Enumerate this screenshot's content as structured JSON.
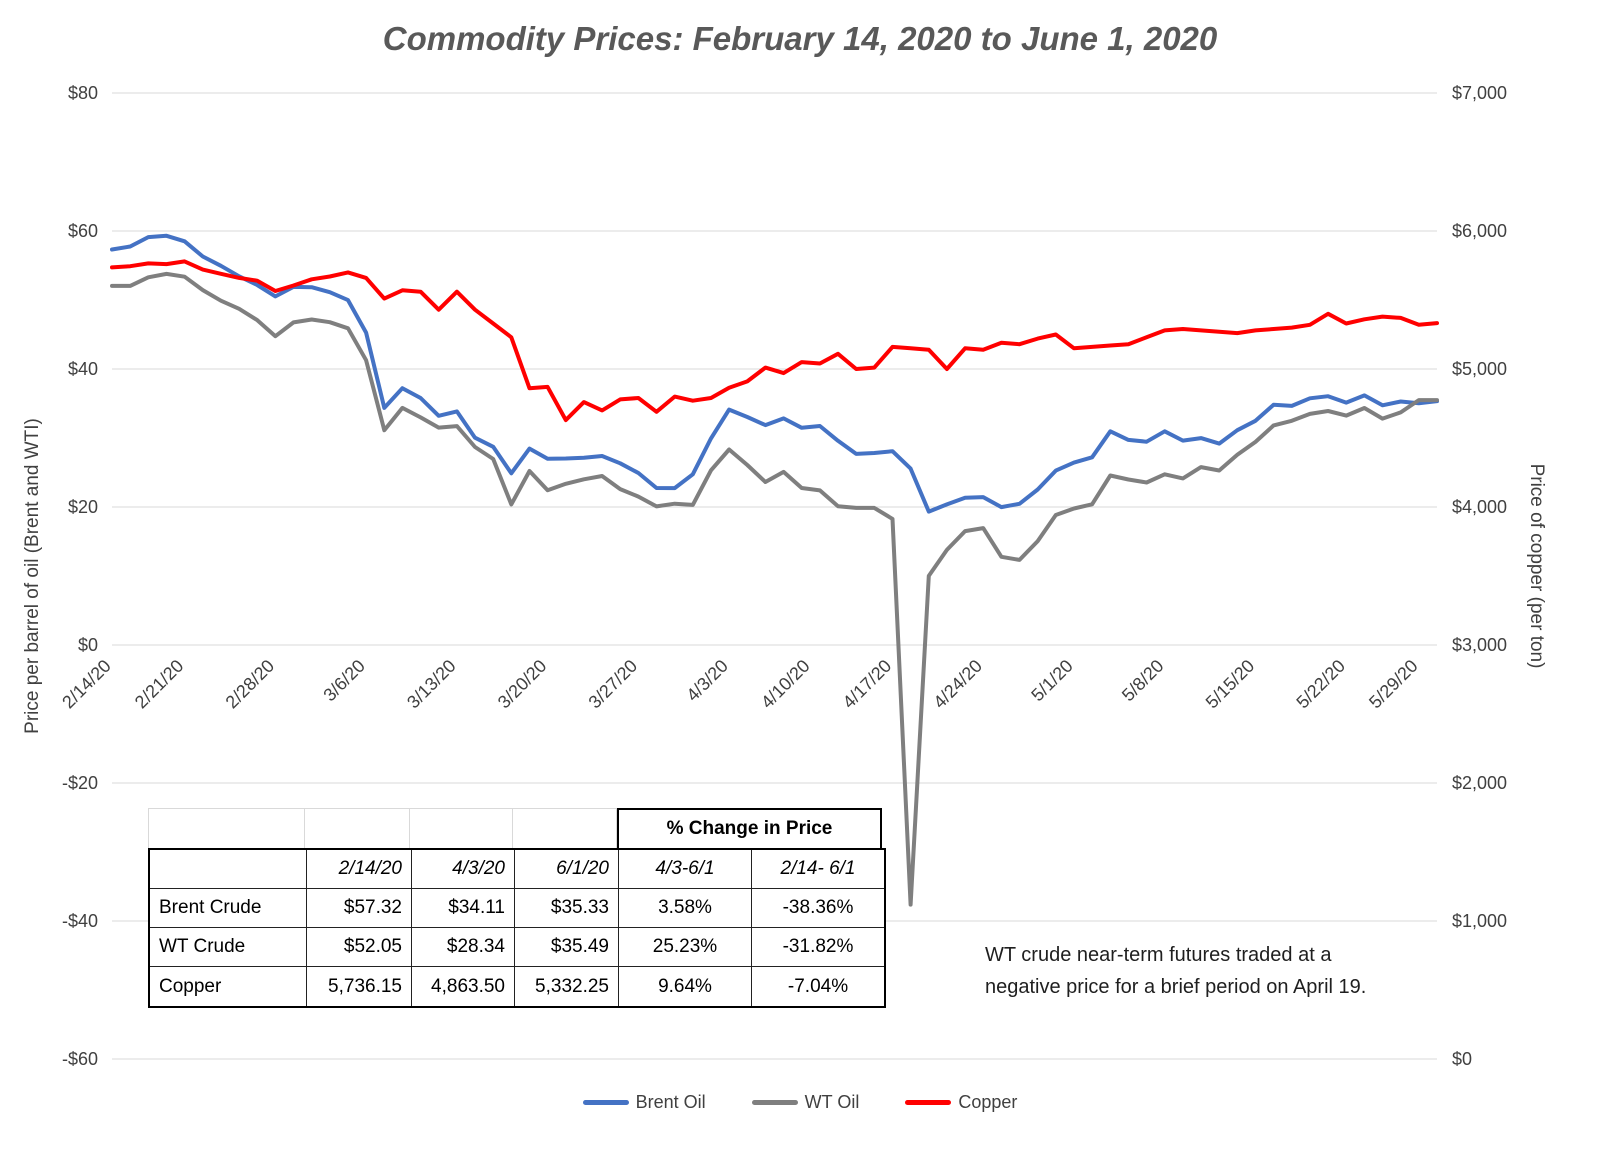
{
  "chart_data": {
    "type": "line",
    "title": "Commodity Prices: February 14, 2020 to June 1, 2020",
    "x_tick_labels": [
      "2/14/20",
      "2/21/20",
      "2/28/20",
      "3/6/20",
      "3/13/20",
      "3/20/20",
      "3/27/20",
      "4/3/20",
      "4/10/20",
      "4/17/20",
      "4/24/20",
      "5/1/20",
      "5/8/20",
      "5/15/20",
      "5/22/20",
      "5/29/20"
    ],
    "x_tick_indices": [
      0,
      4,
      9,
      14,
      19,
      24,
      29,
      34,
      38.5,
      43,
      48,
      53,
      58,
      63,
      68,
      72
    ],
    "left_axis": {
      "label": "Price per barrel of oil (Brent and WTI)",
      "min": -60,
      "max": 80,
      "tick_values": [
        80,
        60,
        40,
        20,
        0,
        -20,
        -40,
        -60
      ],
      "tick_labels": [
        "$80",
        "$60",
        "$40",
        "$20",
        "$0",
        "-$20",
        "-$40",
        "-$60"
      ]
    },
    "right_axis": {
      "label": "Price of copper (per ton)",
      "min": 0,
      "max": 7000,
      "tick_values": [
        7000,
        6000,
        5000,
        4000,
        3000,
        2000,
        1000,
        0
      ],
      "tick_labels": [
        "$7,000",
        "$6,000",
        "$5,000",
        "$4,000",
        "$3,000",
        "$2,000",
        "$1,000",
        "$0"
      ]
    },
    "grid": true,
    "legend_position": "bottom",
    "series": [
      {
        "name": "Brent Oil",
        "color": "#4472C4",
        "axis": "left",
        "values": [
          57.32,
          57.75,
          59.12,
          59.31,
          58.5,
          56.3,
          54.95,
          53.43,
          52.18,
          50.52,
          51.9,
          51.86,
          51.13,
          49.99,
          45.27,
          34.36,
          37.22,
          35.79,
          33.22,
          33.85,
          30.05,
          28.73,
          24.88,
          28.47,
          26.98,
          27.03,
          27.15,
          27.39,
          26.34,
          24.93,
          22.76,
          22.74,
          24.74,
          29.94,
          34.11,
          33.05,
          31.87,
          32.84,
          31.48,
          31.74,
          29.6,
          27.69,
          27.82,
          28.08,
          25.57,
          19.33,
          20.37,
          21.33,
          21.44,
          19.99,
          20.46,
          22.54,
          25.27,
          26.44,
          27.2,
          30.97,
          29.72,
          29.46,
          30.97,
          29.63,
          29.98,
          29.19,
          31.13,
          32.5,
          34.81,
          34.65,
          35.75,
          36.06,
          35.13,
          36.17,
          34.74,
          35.29,
          35.03,
          35.33
        ]
      },
      {
        "name": "WT Oil",
        "color": "#7F7F7F",
        "axis": "left",
        "values": [
          52.05,
          52.05,
          53.29,
          53.78,
          53.38,
          51.43,
          49.9,
          48.73,
          47.09,
          44.76,
          46.75,
          47.18,
          46.78,
          45.9,
          41.28,
          31.13,
          34.36,
          32.98,
          31.5,
          31.73,
          28.7,
          26.95,
          20.37,
          25.22,
          22.43,
          23.36,
          24.01,
          24.49,
          22.6,
          21.51,
          20.09,
          20.48,
          20.31,
          25.32,
          28.34,
          26.08,
          23.63,
          25.09,
          22.76,
          22.41,
          20.11,
          19.87,
          19.87,
          18.27,
          -37.63,
          10.01,
          13.78,
          16.5,
          16.94,
          12.78,
          12.34,
          15.06,
          18.84,
          19.78,
          20.39,
          24.56,
          23.99,
          23.55,
          24.74,
          24.14,
          25.78,
          25.29,
          27.56,
          29.43,
          31.82,
          32.5,
          33.49,
          33.92,
          33.25,
          34.35,
          32.81,
          33.71,
          35.49,
          35.49
        ]
      },
      {
        "name": "Copper",
        "color": "#FF0000",
        "axis": "right",
        "values": [
          5736.15,
          5745,
          5765,
          5760,
          5780,
          5720,
          5690,
          5660,
          5640,
          5565,
          5605,
          5650,
          5670,
          5700,
          5660,
          5510,
          5570,
          5560,
          5430,
          5560,
          5430,
          5330,
          5230,
          4860,
          4870,
          4630,
          4760,
          4700,
          4780,
          4790,
          4690,
          4800,
          4770,
          4790,
          4863.5,
          4910,
          5010,
          4970,
          5050,
          5040,
          5110,
          5000,
          5010,
          5160,
          5150,
          5140,
          5000,
          5150,
          5140,
          5190,
          5180,
          5220,
          5250,
          5150,
          5160,
          5170,
          5180,
          5230,
          5280,
          5290,
          5280,
          5270,
          5260,
          5280,
          5290,
          5300,
          5320,
          5400,
          5330,
          5360,
          5380,
          5370,
          5320,
          5332.25
        ]
      }
    ]
  },
  "table": {
    "pct_change_header": "% Change in Price",
    "col_headers": [
      "",
      "2/14/20",
      "4/3/20",
      "6/1/20",
      "4/3-6/1",
      "2/14- 6/1"
    ],
    "rows": [
      {
        "label": "Brent Crude",
        "values": [
          "$57.32",
          "$34.11",
          "$35.33",
          "3.58%",
          "-38.36%"
        ]
      },
      {
        "label": "WT Crude",
        "values": [
          "$52.05",
          "$28.34",
          "$35.49",
          "25.23%",
          "-31.82%"
        ]
      },
      {
        "label": "Copper",
        "values": [
          "5,736.15",
          "4,863.50",
          "5,332.25",
          "9.64%",
          "-7.04%"
        ]
      }
    ]
  },
  "annotation": "WT crude near-term futures traded at a negative price for a brief period on April 19."
}
